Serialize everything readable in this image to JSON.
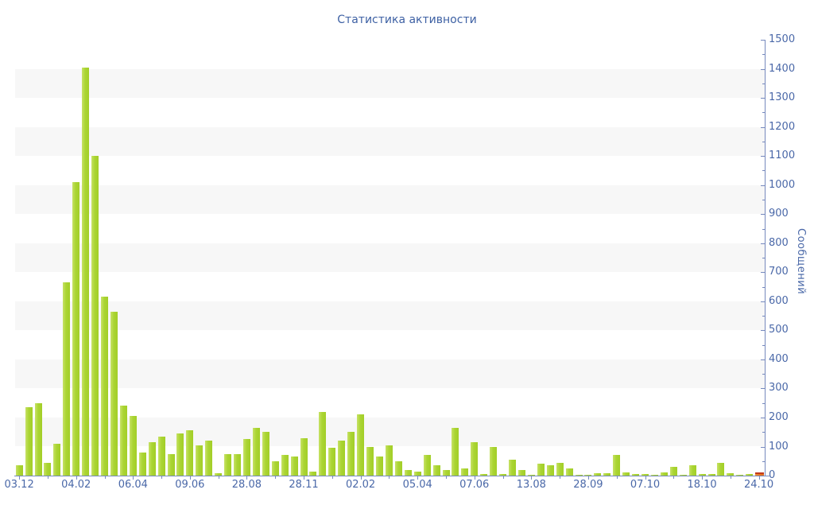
{
  "chart_data": {
    "type": "bar",
    "title": "Статистика активности",
    "ylabel": "Сообщений",
    "xlabel": "",
    "ylim": [
      0,
      1500
    ],
    "y_major_step": 100,
    "y_minor_step": 50,
    "y_tick_labels": [
      "0",
      "100",
      "200",
      "300",
      "400",
      "500",
      "600",
      "700",
      "800",
      "900",
      "1000",
      "1100",
      "1200",
      "1300",
      "1400",
      "1500"
    ],
    "grid": "alternating horizontal gray bands every 100 units",
    "legend": null,
    "x_tick_labels": [
      "03.12",
      "04.02",
      "06.04",
      "09.06",
      "28.08",
      "28.11",
      "02.02",
      "05.04",
      "07.06",
      "13.08",
      "28.09",
      "07.10",
      "18.10",
      "24.10"
    ],
    "x_label_every_n_bars": 6,
    "values": [
      35,
      235,
      250,
      45,
      110,
      665,
      1010,
      1405,
      1100,
      615,
      565,
      240,
      205,
      80,
      115,
      135,
      75,
      145,
      155,
      105,
      120,
      8,
      75,
      75,
      125,
      165,
      150,
      50,
      70,
      65,
      130,
      15,
      220,
      95,
      120,
      150,
      210,
      100,
      65,
      105,
      50,
      20,
      15,
      70,
      35,
      20,
      165,
      25,
      115,
      5,
      100,
      5,
      55,
      20,
      2,
      40,
      35,
      45,
      25,
      2,
      2,
      8,
      8,
      70,
      12,
      5,
      5,
      2,
      12,
      30,
      2,
      35,
      5,
      5,
      45,
      8,
      2,
      5,
      10
    ],
    "last_bar_highlighted": true,
    "colors": {
      "bar": "#abd534",
      "bar_edge_highlight": "#c7e266",
      "last_bar": "#ea7520",
      "last_bar_border": "#c03a1d",
      "axis_line": "#7689bd",
      "tick_text": "#4a68a8",
      "title_text": "#3e61a4",
      "stripe": "#f7f7f7",
      "background": "#ffffff"
    }
  }
}
